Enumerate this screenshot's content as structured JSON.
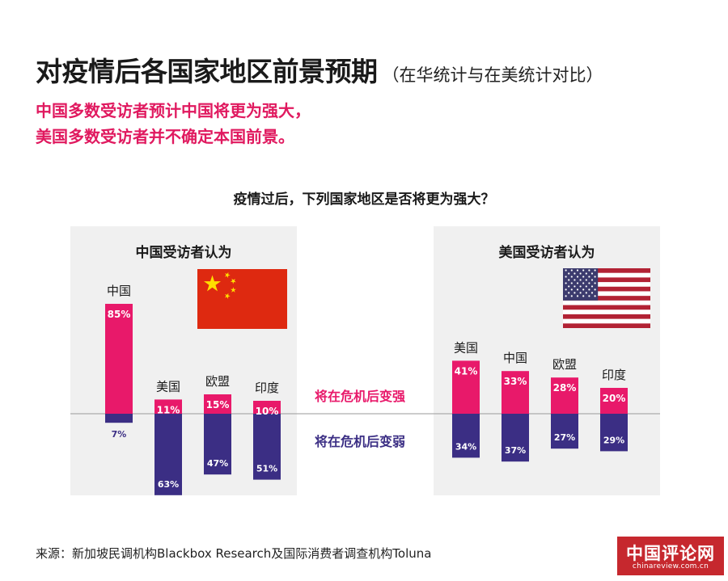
{
  "title": "对疫情后各国家地区前景预期",
  "title_paren": "（在华统计与在美统计对比）",
  "subtitle_lines": [
    "中国多数受访者预计中国将更为强大，",
    "美国多数受访者并不确定本国前景。"
  ],
  "question": "疫情过后，下列国家地区是否将更为强大？",
  "legend": {
    "stronger": "将在危机后变强",
    "weaker": "将在危机后变弱"
  },
  "source": "来源：新加坡民调机构Blackbox Research及国际消费者调查机构Toluna",
  "logo": {
    "main": "中国评论网",
    "sub": "chinareview.com.cn"
  },
  "colors": {
    "stronger": "#e8196a",
    "weaker": "#3b2e84",
    "panel_bg": "#f0f0f0",
    "accent_text": "#e0195f",
    "flag_cn_red": "#de2910",
    "flag_cn_star": "#ffde00",
    "flag_us_red": "#b22234",
    "flag_us_blue": "#3c3b6e",
    "logo_red": "#c6282e"
  },
  "chart_data": [
    {
      "type": "bar",
      "panel_title": "中国受访者认为",
      "flag": "china-flag",
      "categories": [
        "中国",
        "美国",
        "欧盟",
        "印度"
      ],
      "series": [
        {
          "name": "将在危机后变强",
          "values": [
            85,
            11,
            15,
            10
          ]
        },
        {
          "name": "将在危机后变弱",
          "values": [
            7,
            63,
            47,
            51
          ]
        }
      ],
      "value_labels_stronger": [
        "85%",
        "11%",
        "15%",
        "10%"
      ],
      "value_labels_weaker": [
        "7%",
        "63%",
        "47%",
        "51%"
      ],
      "layout": "diverging"
    },
    {
      "type": "bar",
      "panel_title": "美国受访者认为",
      "flag": "us-flag",
      "categories": [
        "美国",
        "中国",
        "欧盟",
        "印度"
      ],
      "series": [
        {
          "name": "将在危机后变强",
          "values": [
            41,
            33,
            28,
            20
          ]
        },
        {
          "name": "将在危机后变弱",
          "values": [
            34,
            37,
            27,
            29
          ]
        }
      ],
      "value_labels_stronger": [
        "41%",
        "33%",
        "28%",
        "20%"
      ],
      "value_labels_weaker": [
        "34%",
        "37%",
        "27%",
        "29%"
      ],
      "layout": "diverging"
    }
  ]
}
